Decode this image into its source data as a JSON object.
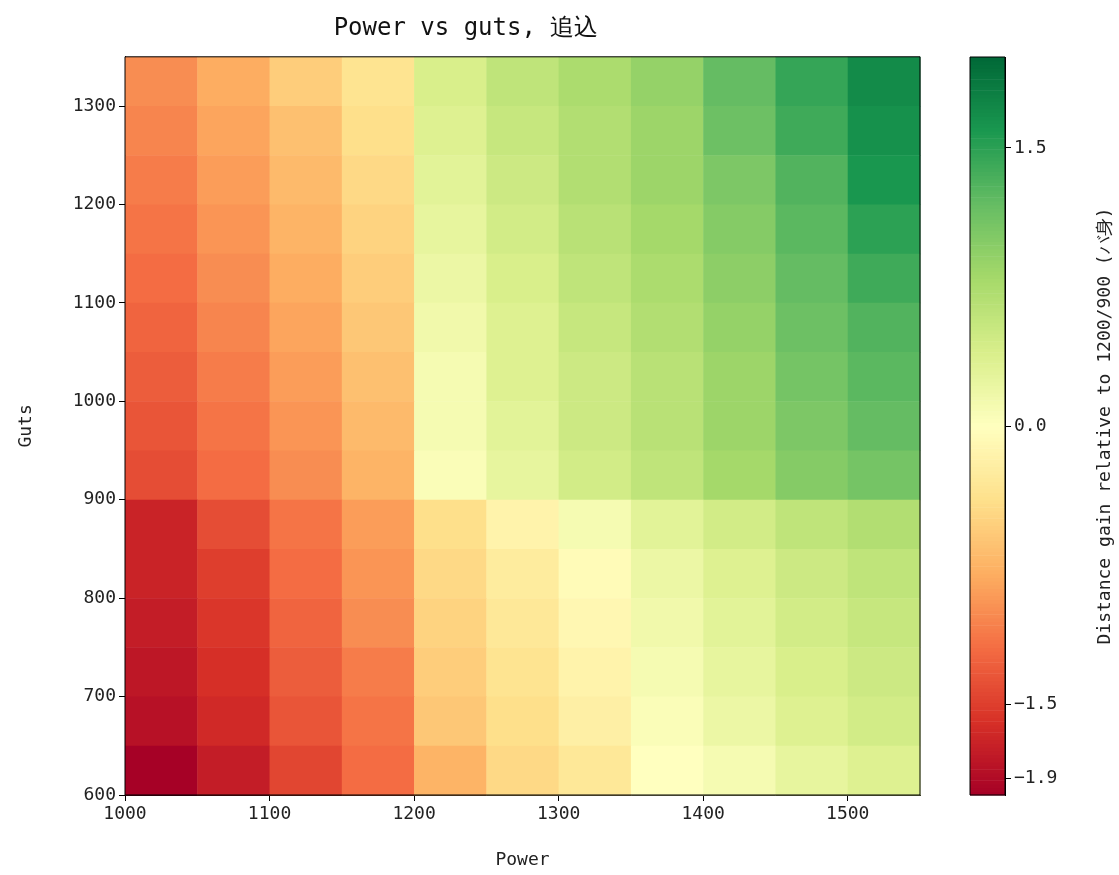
{
  "chart_data": {
    "type": "heatmap",
    "title": "Power vs guts, 追込",
    "xlabel": "Power",
    "ylabel": "Guts",
    "clabel": "Distance gain relative to 1200/900 (バ身)",
    "x": [
      1025,
      1075,
      1125,
      1175,
      1225,
      1275,
      1325,
      1375,
      1425,
      1475,
      1525
    ],
    "y": [
      1325,
      1275,
      1225,
      1175,
      1125,
      1075,
      1025,
      975,
      925,
      875,
      825,
      775,
      725,
      675,
      625
    ],
    "xlim": [
      1000,
      1550
    ],
    "xticks": [
      1000,
      1100,
      1200,
      1300,
      1400,
      1500
    ],
    "ylim": [
      600,
      1350
    ],
    "yticks": [
      600,
      700,
      800,
      900,
      1000,
      1100,
      1200,
      1300
    ],
    "clim": [
      -1.99,
      1.99
    ],
    "cticks": [
      {
        "value": -1.9,
        "label": "−1.9"
      },
      {
        "value": -1.5,
        "label": "−1.5"
      },
      {
        "value": 0.0,
        "label": "0.0"
      },
      {
        "value": 1.5,
        "label": "1.5"
      }
    ],
    "cells": [
      [
        -1.0,
        -0.8,
        -0.55,
        -0.35,
        0.4,
        0.6,
        0.75,
        0.9,
        1.2,
        1.45,
        1.7
      ],
      [
        -1.05,
        -0.85,
        -0.65,
        -0.4,
        0.35,
        0.55,
        0.7,
        0.85,
        1.15,
        1.4,
        1.65
      ],
      [
        -1.1,
        -0.9,
        -0.7,
        -0.45,
        0.3,
        0.5,
        0.7,
        0.85,
        1.05,
        1.3,
        1.6
      ],
      [
        -1.15,
        -0.95,
        -0.75,
        -0.5,
        0.25,
        0.45,
        0.65,
        0.8,
        1.0,
        1.25,
        1.5
      ],
      [
        -1.2,
        -1.0,
        -0.8,
        -0.55,
        0.2,
        0.4,
        0.6,
        0.75,
        0.95,
        1.2,
        1.4
      ],
      [
        -1.25,
        -1.05,
        -0.85,
        -0.6,
        0.15,
        0.35,
        0.55,
        0.7,
        0.9,
        1.15,
        1.3
      ],
      [
        -1.3,
        -1.1,
        -0.9,
        -0.65,
        0.1,
        0.35,
        0.5,
        0.65,
        0.85,
        1.1,
        1.25
      ],
      [
        -1.35,
        -1.15,
        -0.95,
        -0.7,
        0.1,
        0.3,
        0.5,
        0.65,
        0.85,
        1.05,
        1.2
      ],
      [
        -1.4,
        -1.2,
        -1.0,
        -0.75,
        0.05,
        0.25,
        0.45,
        0.6,
        0.8,
        1.0,
        1.1
      ],
      [
        -1.7,
        -1.4,
        -1.15,
        -0.9,
        -0.4,
        -0.15,
        0.1,
        0.3,
        0.45,
        0.6,
        0.7
      ],
      [
        -1.7,
        -1.5,
        -1.2,
        -0.95,
        -0.45,
        -0.25,
        -0.05,
        0.2,
        0.35,
        0.5,
        0.6
      ],
      [
        -1.75,
        -1.55,
        -1.25,
        -1.0,
        -0.5,
        -0.3,
        -0.1,
        0.15,
        0.3,
        0.45,
        0.55
      ],
      [
        -1.8,
        -1.6,
        -1.3,
        -1.1,
        -0.55,
        -0.35,
        -0.15,
        0.1,
        0.25,
        0.4,
        0.5
      ],
      [
        -1.85,
        -1.65,
        -1.35,
        -1.15,
        -0.6,
        -0.4,
        -0.2,
        0.05,
        0.2,
        0.35,
        0.45
      ],
      [
        -1.98,
        -1.75,
        -1.45,
        -1.2,
        -0.75,
        -0.45,
        -0.3,
        0.0,
        0.1,
        0.25,
        0.35
      ]
    ]
  }
}
